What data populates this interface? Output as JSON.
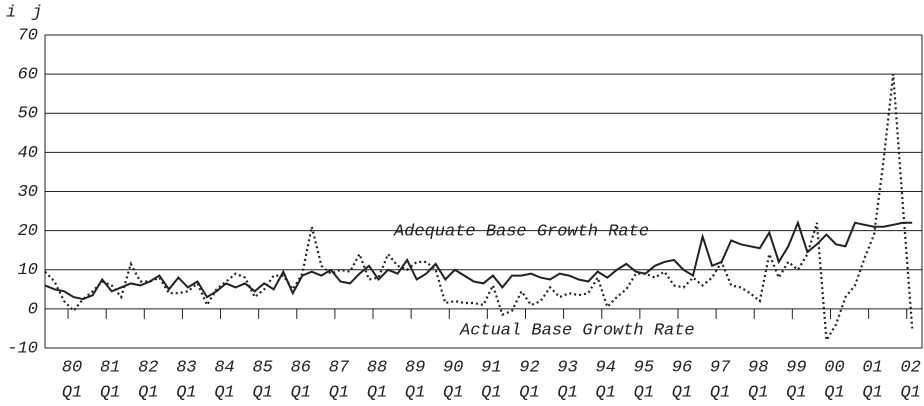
{
  "chart_data": {
    "type": "line",
    "axis_labels": [
      "i",
      "j"
    ],
    "categories": [
      null,
      null,
      [
        "80",
        "Q1"
      ],
      null,
      null,
      null,
      [
        "81",
        "Q1"
      ],
      null,
      null,
      null,
      [
        "82",
        "Q1"
      ],
      null,
      null,
      null,
      [
        "83",
        "Q1"
      ],
      null,
      null,
      null,
      [
        "84",
        "Q1"
      ],
      null,
      null,
      null,
      [
        "85",
        "Q1"
      ],
      null,
      null,
      null,
      [
        "86",
        "Q1"
      ],
      null,
      null,
      null,
      [
        "87",
        "Q1"
      ],
      null,
      null,
      null,
      [
        "88",
        "Q1"
      ],
      null,
      null,
      null,
      [
        "89",
        "Q1"
      ],
      null,
      null,
      null,
      [
        "90",
        "Q1"
      ],
      null,
      null,
      null,
      [
        "91",
        "Q1"
      ],
      null,
      null,
      null,
      [
        "92",
        "Q1"
      ],
      null,
      null,
      null,
      [
        "93",
        "Q1"
      ],
      null,
      null,
      null,
      [
        "94",
        "Q1"
      ],
      null,
      null,
      null,
      [
        "95",
        "Q1"
      ],
      null,
      null,
      null,
      [
        "96",
        "Q1"
      ],
      null,
      null,
      null,
      [
        "97",
        "Q1"
      ],
      null,
      null,
      null,
      [
        "98",
        "Q1"
      ],
      null,
      null,
      null,
      [
        "99",
        "Q1"
      ],
      null,
      null,
      null,
      [
        "00",
        "Q1"
      ],
      null,
      null,
      null,
      [
        "01",
        "Q1"
      ],
      null,
      null,
      null,
      [
        "02",
        "Q1"
      ],
      null
    ],
    "series": [
      {
        "name": "Adequate Base Growth Rate",
        "color": "#222222",
        "dash": "solid",
        "values": [
          6,
          5,
          4.5,
          3,
          2.5,
          3.5,
          7.5,
          4.5,
          5.5,
          6.5,
          6,
          7,
          8.5,
          5,
          8,
          5.5,
          7,
          3,
          4.5,
          6.5,
          5.5,
          6.5,
          4.5,
          6.5,
          5,
          9.5,
          4,
          8.5,
          9.5,
          8.5,
          10,
          7,
          6.5,
          9,
          11,
          7.5,
          10,
          9,
          12.5,
          7.5,
          9,
          11.5,
          7.5,
          10,
          8.5,
          7,
          6.5,
          8.5,
          5.5,
          8.5,
          8.5,
          9,
          8,
          7.5,
          9,
          8.5,
          7.5,
          7,
          9.5,
          8,
          10,
          11.5,
          9.5,
          9,
          11,
          12,
          12.5,
          10,
          8.5,
          18.5,
          11,
          12,
          17.5,
          16.5,
          16,
          15.5,
          19.5,
          12,
          16,
          22,
          14.5,
          16.5,
          19,
          16.5,
          16,
          22,
          21.5,
          21,
          21,
          21.5,
          22,
          22
        ]
      },
      {
        "name": "Actual Base Growth Rate",
        "color": "#222222",
        "dash": "dotted",
        "values": [
          9.5,
          7,
          2,
          -0.5,
          2.5,
          4.5,
          7,
          6,
          3,
          11.5,
          7,
          7,
          8,
          4,
          4,
          4.5,
          6.5,
          1,
          5,
          7,
          9,
          8,
          3,
          5,
          8.5,
          8.5,
          5,
          9,
          21,
          11,
          9,
          10,
          9.5,
          14,
          7.5,
          8,
          14,
          11,
          10,
          12,
          12,
          10,
          1.5,
          2,
          1.5,
          1.5,
          1,
          6,
          -1.5,
          -0.5,
          4.5,
          1,
          2,
          5.5,
          3,
          4,
          3.5,
          4,
          8,
          0.5,
          3,
          5,
          9,
          9,
          8,
          9.5,
          6,
          5.5,
          8,
          6,
          8,
          12,
          6,
          5.5,
          4,
          2,
          14,
          8,
          12,
          10,
          14,
          22,
          -8,
          -4,
          3,
          6,
          13,
          19,
          38,
          60,
          27,
          -5
        ]
      }
    ],
    "ylim": [
      -10,
      70
    ],
    "yticks": [
      -10,
      0,
      10,
      20,
      30,
      40,
      50,
      60,
      70
    ],
    "grid": true
  }
}
